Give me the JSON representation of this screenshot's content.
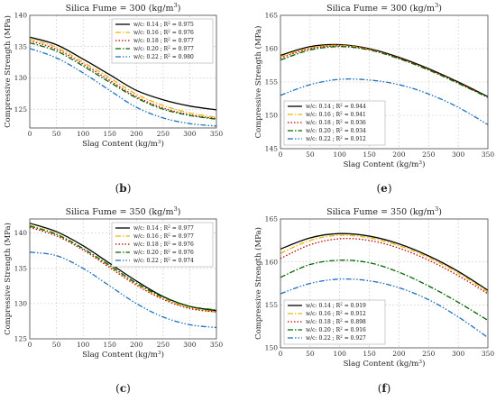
{
  "chart_data": [
    {
      "type": "line",
      "panel_label": "(b)",
      "title": "Silica Fume = 300 (kg/m³)",
      "xlabel": "Slag Content (kg/m³)",
      "ylabel": "Compressive Strength (MPa)",
      "xlim": [
        0,
        350
      ],
      "ylim": [
        122,
        140
      ],
      "xticks": [
        0,
        50,
        100,
        150,
        200,
        250,
        300,
        350
      ],
      "yticks": [
        125,
        130,
        135,
        140
      ],
      "grid": true,
      "legend_position": "top-right",
      "x": [
        0,
        50,
        100,
        150,
        200,
        250,
        300,
        350
      ],
      "series": [
        {
          "name": "w/c: 0.14 ; R² = 0.975",
          "color": "#000000",
          "dash": "solid",
          "values": [
            136.5,
            135.3,
            133.0,
            130.5,
            128.0,
            126.5,
            125.5,
            124.9
          ]
        },
        {
          "name": "w/c: 0.16 ; R² = 0.976",
          "color": "#e8b800",
          "dash": "dashdot",
          "values": [
            136.2,
            134.9,
            132.5,
            130.0,
            127.4,
            125.6,
            124.4,
            123.7
          ]
        },
        {
          "name": "w/c: 0.18 ; R² = 0.977",
          "color": "#c00000",
          "dash": "dot",
          "values": [
            135.9,
            134.6,
            132.2,
            129.6,
            127.0,
            125.2,
            124.1,
            123.5
          ]
        },
        {
          "name": "w/c: 0.20 ; R² = 0.977",
          "color": "#006600",
          "dash": "dashdot",
          "values": [
            135.6,
            134.3,
            131.9,
            129.3,
            126.8,
            125.0,
            124.0,
            123.4
          ]
        },
        {
          "name": "w/c: 0.22 ; R² = 0.980",
          "color": "#1f6fbf",
          "dash": "dashdotdot",
          "values": [
            134.7,
            133.2,
            130.8,
            128.0,
            125.3,
            123.6,
            122.7,
            122.3
          ]
        }
      ]
    },
    {
      "type": "line",
      "panel_label": "(e)",
      "title": "Silica Fume = 300 (kg/m³)",
      "xlabel": "Slag Content (kg/m³)",
      "ylabel": "Compressive Strength (MPa)",
      "xlim": [
        0,
        350
      ],
      "ylim": [
        145,
        165
      ],
      "xticks": [
        0,
        50,
        100,
        150,
        200,
        250,
        300,
        350
      ],
      "yticks": [
        145,
        150,
        155,
        160,
        165
      ],
      "grid": true,
      "legend_position": "bottom-left",
      "x": [
        0,
        50,
        100,
        150,
        200,
        250,
        300,
        350
      ],
      "series": [
        {
          "name": "w/c: 0.14 ; R² = 0.944",
          "color": "#000000",
          "dash": "solid",
          "values": [
            159.0,
            160.3,
            160.6,
            160.0,
            158.7,
            157.0,
            155.0,
            152.8
          ]
        },
        {
          "name": "w/c: 0.16 ; R² = 0.941",
          "color": "#e8b800",
          "dash": "dashdot",
          "values": [
            158.8,
            160.1,
            160.5,
            159.9,
            158.5,
            156.8,
            154.8,
            152.7
          ]
        },
        {
          "name": "w/c: 0.18 ; R² = 0.936",
          "color": "#c00000",
          "dash": "dot",
          "values": [
            158.6,
            160.0,
            160.4,
            159.9,
            158.6,
            156.9,
            154.9,
            152.7
          ]
        },
        {
          "name": "w/c: 0.20 ; R² = 0.934",
          "color": "#006600",
          "dash": "dashdot",
          "values": [
            158.3,
            159.8,
            160.3,
            159.8,
            158.5,
            156.8,
            154.8,
            152.7
          ]
        },
        {
          "name": "w/c: 0.22 ; R² = 0.912",
          "color": "#1f6fbf",
          "dash": "dashdotdot",
          "values": [
            153.0,
            154.6,
            155.4,
            155.3,
            154.6,
            153.2,
            151.2,
            148.6
          ]
        }
      ]
    },
    {
      "type": "line",
      "panel_label": "(c)",
      "title": "Silica Fume = 350 (kg/m³)",
      "xlabel": "Slag Content (kg/m³)",
      "ylabel": "Compressive Strength (MPa)",
      "xlim": [
        0,
        350
      ],
      "ylim": [
        125,
        142
      ],
      "xticks": [
        0,
        50,
        100,
        150,
        200,
        250,
        300,
        350
      ],
      "yticks": [
        125,
        130,
        135,
        140
      ],
      "grid": true,
      "legend_position": "top-right",
      "x": [
        0,
        50,
        100,
        150,
        200,
        250,
        300,
        350
      ],
      "series": [
        {
          "name": "w/c: 0.14 ; R² = 0.977",
          "color": "#000000",
          "dash": "solid",
          "values": [
            141.4,
            140.2,
            138.2,
            135.7,
            133.2,
            131.0,
            129.6,
            129.0
          ]
        },
        {
          "name": "w/c: 0.16 ; R² = 0.977",
          "color": "#e8b800",
          "dash": "dashdot",
          "values": [
            141.1,
            139.9,
            137.8,
            135.3,
            132.8,
            130.7,
            129.4,
            128.8
          ]
        },
        {
          "name": "w/c: 0.18 ; R² = 0.976",
          "color": "#c00000",
          "dash": "dot",
          "values": [
            140.8,
            139.6,
            137.6,
            135.1,
            132.6,
            130.6,
            129.3,
            128.8
          ]
        },
        {
          "name": "w/c: 0.20 ; R² = 0.976",
          "color": "#006600",
          "dash": "dashdot",
          "values": [
            141.0,
            139.8,
            137.8,
            135.4,
            132.9,
            130.9,
            129.6,
            129.1
          ]
        },
        {
          "name": "w/c: 0.22 ; R² = 0.974",
          "color": "#1f6fbf",
          "dash": "dashdotdot",
          "values": [
            137.3,
            136.8,
            135.0,
            132.5,
            130.0,
            128.1,
            127.0,
            126.6
          ]
        }
      ]
    },
    {
      "type": "line",
      "panel_label": "(f)",
      "title": "Silica Fume = 350 (kg/m³)",
      "xlabel": "Slag Content (kg/m³)",
      "ylabel": "Compressive Strength (MPa)",
      "xlim": [
        0,
        350
      ],
      "ylim": [
        150,
        165
      ],
      "xticks": [
        0,
        50,
        100,
        150,
        200,
        250,
        300,
        350
      ],
      "yticks": [
        150,
        155,
        160,
        165
      ],
      "grid": true,
      "legend_position": "bottom-left",
      "x": [
        0,
        50,
        100,
        150,
        200,
        250,
        300,
        350
      ],
      "series": [
        {
          "name": "w/c: 0.14 ; R² = 0.919",
          "color": "#000000",
          "dash": "solid",
          "values": [
            161.5,
            162.8,
            163.3,
            163.0,
            162.1,
            160.7,
            158.9,
            156.7
          ]
        },
        {
          "name": "w/c: 0.16 ; R² = 0.912",
          "color": "#e8b800",
          "dash": "dashdot",
          "values": [
            161.0,
            162.5,
            163.1,
            162.8,
            161.9,
            160.5,
            158.7,
            156.5
          ]
        },
        {
          "name": "w/c: 0.18 ; R² = 0.898",
          "color": "#c00000",
          "dash": "dot",
          "values": [
            160.4,
            162.0,
            162.7,
            162.5,
            161.6,
            160.2,
            158.4,
            156.3
          ]
        },
        {
          "name": "w/c: 0.20 ; R² = 0.916",
          "color": "#006600",
          "dash": "dashdot",
          "values": [
            158.2,
            159.7,
            160.2,
            159.9,
            158.8,
            157.2,
            155.3,
            153.2
          ]
        },
        {
          "name": "w/c: 0.22 ; R² = 0.927",
          "color": "#1f6fbf",
          "dash": "dashdotdot",
          "values": [
            156.3,
            157.5,
            158.0,
            157.8,
            157.0,
            155.6,
            153.6,
            151.2
          ]
        }
      ]
    }
  ]
}
